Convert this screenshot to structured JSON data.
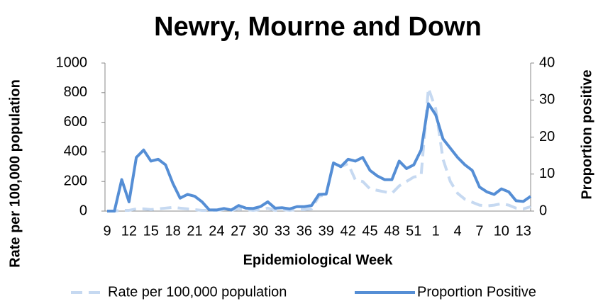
{
  "chart_data": {
    "type": "line",
    "title": "Newry, Mourne and Down",
    "xlabel": "Epidemiological Week",
    "ylabel": "Rate per 100,000 population",
    "y2label": "Proportion positive",
    "categories": [
      9,
      null,
      null,
      12,
      null,
      null,
      15,
      null,
      null,
      18,
      null,
      null,
      21,
      null,
      null,
      24,
      null,
      null,
      27,
      null,
      null,
      30,
      null,
      null,
      33,
      null,
      null,
      36,
      null,
      null,
      39,
      null,
      null,
      42,
      null,
      null,
      45,
      null,
      null,
      48,
      null,
      null,
      51,
      null,
      null,
      1,
      null,
      null,
      4,
      null,
      null,
      7,
      null,
      null,
      10,
      null,
      null,
      13,
      null
    ],
    "series": [
      {
        "name": "Rate per 100,000 population",
        "color": "#c6d9f1",
        "line_style": "dashed",
        "values": [
          0,
          0,
          5,
          5,
          15,
          15,
          10,
          15,
          20,
          25,
          20,
          15,
          10,
          5,
          5,
          5,
          10,
          5,
          15,
          10,
          5,
          10,
          20,
          5,
          10,
          5,
          10,
          10,
          15,
          100,
          110,
          330,
          300,
          320,
          210,
          200,
          150,
          140,
          130,
          120,
          170,
          200,
          230,
          240,
          830,
          690,
          350,
          200,
          120,
          80,
          60,
          40,
          35,
          40,
          50,
          40,
          20,
          15,
          30
        ]
      },
      {
        "name": "Proportion Positive",
        "color": "#558ed5",
        "line_style": "solid",
        "axis": "y2",
        "values": [
          0,
          0,
          8.5,
          2.5,
          14.5,
          16.5,
          13.5,
          14,
          12.5,
          7.5,
          3.5,
          4.5,
          4,
          2.5,
          0.3,
          0.3,
          0.7,
          0.3,
          1.5,
          0.8,
          0.7,
          1.2,
          2.5,
          0.8,
          0.9,
          0.6,
          1.2,
          1.2,
          1.5,
          4.5,
          4.6,
          13,
          12,
          14,
          13.5,
          14.5,
          11,
          9.5,
          8.5,
          8.5,
          13.5,
          11.5,
          12.5,
          16.5,
          29,
          26,
          19.5,
          17,
          14.5,
          12.5,
          11,
          6.5,
          5.2,
          4.5,
          6,
          5.2,
          2.8,
          2.6,
          4
        ]
      }
    ],
    "ylim": [
      0,
      1000
    ],
    "yticks": [
      0,
      200,
      400,
      600,
      800,
      1000
    ],
    "y2lim": [
      0,
      40
    ],
    "y2ticks": [
      0,
      10,
      20,
      30,
      40
    ],
    "grid": false,
    "legend": "bottom"
  }
}
